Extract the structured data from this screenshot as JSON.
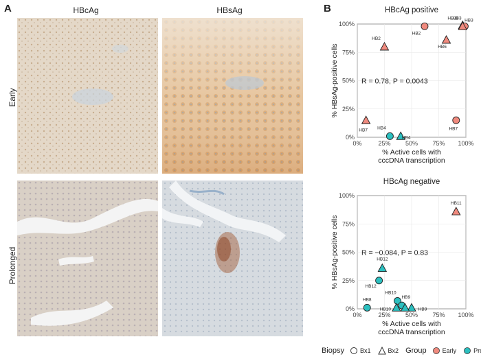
{
  "figure": {
    "panel_a_label": "A",
    "panel_b_label": "B",
    "columns": [
      "HBcAg",
      "HBsAg"
    ],
    "rows": [
      "Early",
      "Prolonged"
    ]
  },
  "colors": {
    "early": "#F08A7E",
    "prolonged": "#2BBFBF"
  },
  "legend": {
    "biopsy_title": "Biopsy",
    "biopsy_items": [
      "Bx1",
      "Bx2"
    ],
    "group_title": "Group",
    "group_items": [
      "Early",
      "Prolonged"
    ]
  },
  "chart_data": [
    {
      "type": "scatter",
      "title": "HBcAg positive",
      "xlabel": "% Active cells with cccDNA transcription",
      "ylabel": "% HBsAg-positive cells",
      "xlim": [
        0,
        100
      ],
      "ylim": [
        0,
        100
      ],
      "ticks": [
        "0%",
        "25%",
        "50%",
        "75%",
        "100%"
      ],
      "annotation": "R = 0.78, P = 0.0043",
      "points": [
        {
          "x": 62,
          "y": 98,
          "group": "Early",
          "biopsy": "Bx1",
          "label": "HB2"
        },
        {
          "x": 25,
          "y": 80,
          "group": "Early",
          "biopsy": "Bx2",
          "label": "HB2"
        },
        {
          "x": 97,
          "y": 99,
          "group": "Early",
          "biopsy": "Bx2",
          "label": "HB3"
        },
        {
          "x": 99,
          "y": 98,
          "group": "Early",
          "biopsy": "Bx1",
          "label": "HB3"
        },
        {
          "x": 97,
          "y": 98,
          "group": "Early",
          "biopsy": "Bx2",
          "label": "HB11"
        },
        {
          "x": 82,
          "y": 86,
          "group": "Early",
          "biopsy": "Bx2",
          "label": "HB6"
        },
        {
          "x": 8,
          "y": 15,
          "group": "Early",
          "biopsy": "Bx2",
          "label": "HB7"
        },
        {
          "x": 91,
          "y": 15,
          "group": "Early",
          "biopsy": "Bx1",
          "label": "HB7"
        },
        {
          "x": 30,
          "y": 1,
          "group": "Prolonged",
          "biopsy": "Bx1",
          "label": "HB4"
        },
        {
          "x": 40,
          "y": 1,
          "group": "Prolonged",
          "biopsy": "Bx2",
          "label": "HB4"
        }
      ]
    },
    {
      "type": "scatter",
      "title": "HBcAg negative",
      "xlabel": "% Active cells with cccDNA transcription",
      "ylabel": "% HBsAg-positive cells",
      "xlim": [
        0,
        100
      ],
      "ylim": [
        0,
        100
      ],
      "ticks": [
        "0%",
        "25%",
        "50%",
        "75%",
        "100%"
      ],
      "annotation": "R = −0.084, P = 0.83",
      "points": [
        {
          "x": 91,
          "y": 86,
          "group": "Early",
          "biopsy": "Bx2",
          "label": "HB11"
        },
        {
          "x": 23,
          "y": 36,
          "group": "Prolonged",
          "biopsy": "Bx2",
          "label": "HB12"
        },
        {
          "x": 20,
          "y": 25,
          "group": "Prolonged",
          "biopsy": "Bx1",
          "label": "HB12"
        },
        {
          "x": 9,
          "y": 1,
          "group": "Prolonged",
          "biopsy": "Bx1",
          "label": "HB8"
        },
        {
          "x": 37,
          "y": 7,
          "group": "Prolonged",
          "biopsy": "Bx1",
          "label": "HB10"
        },
        {
          "x": 36,
          "y": 1,
          "group": "Prolonged",
          "biopsy": "Bx2",
          "label": "HB10"
        },
        {
          "x": 41,
          "y": 3,
          "group": "Prolonged",
          "biopsy": "Bx1",
          "label": "HB9"
        },
        {
          "x": 50,
          "y": 1,
          "group": "Prolonged",
          "biopsy": "Bx2",
          "label": "HB9"
        },
        {
          "x": 44,
          "y": 1,
          "group": "Prolonged",
          "biopsy": "Bx2",
          "label": ""
        }
      ]
    }
  ]
}
